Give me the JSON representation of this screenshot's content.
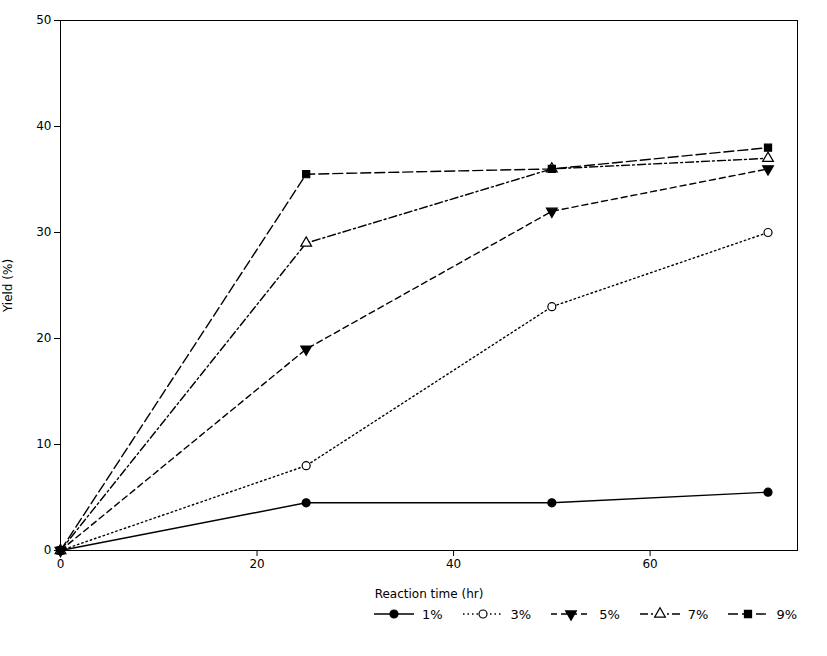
{
  "chart_data": {
    "type": "line",
    "x": [
      0,
      25,
      50,
      72
    ],
    "series": [
      {
        "name": "1%",
        "color": "#000000",
        "values": [
          0,
          4.5,
          4.5,
          5.5
        ],
        "marker": "circle",
        "line_style": "solid"
      },
      {
        "name": "3%",
        "color": "#000000",
        "values": [
          0,
          8,
          23,
          30
        ],
        "marker": "circle-open",
        "line_style": "dotted"
      },
      {
        "name": "5%",
        "color": "#000000",
        "values": [
          0,
          19,
          32,
          36
        ],
        "marker": "triangle-down",
        "line_style": "dashed"
      },
      {
        "name": "7%",
        "color": "#000000",
        "values": [
          0,
          29,
          36,
          37
        ],
        "marker": "triangle-up-open",
        "line_style": "dashdot"
      },
      {
        "name": "9%",
        "color": "#000000",
        "values": [
          0,
          35.5,
          36,
          38
        ],
        "marker": "square",
        "line_style": "longdashed"
      }
    ],
    "xlabel": "Reaction time (hr)",
    "ylabel": "Yield (%)",
    "xlim": [
      0,
      75
    ],
    "ylim": [
      0,
      50
    ],
    "xticks": [
      0,
      20,
      40,
      60
    ],
    "yticks": [
      0,
      10,
      20,
      30,
      40,
      50
    ],
    "grid": false,
    "legend": "lower right"
  }
}
